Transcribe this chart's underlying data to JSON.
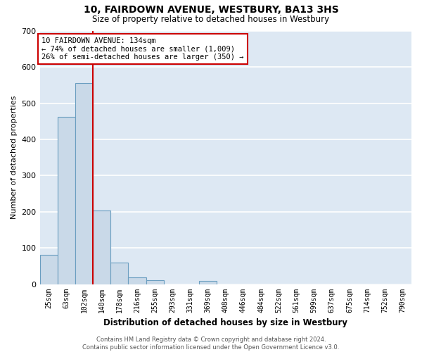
{
  "title": "10, FAIRDOWN AVENUE, WESTBURY, BA13 3HS",
  "subtitle": "Size of property relative to detached houses in Westbury",
  "xlabel": "Distribution of detached houses by size in Westbury",
  "ylabel": "Number of detached properties",
  "bin_labels": [
    "25sqm",
    "63sqm",
    "102sqm",
    "140sqm",
    "178sqm",
    "216sqm",
    "255sqm",
    "293sqm",
    "331sqm",
    "369sqm",
    "408sqm",
    "446sqm",
    "484sqm",
    "522sqm",
    "561sqm",
    "599sqm",
    "637sqm",
    "675sqm",
    "714sqm",
    "752sqm",
    "790sqm"
  ],
  "bar_heights": [
    80,
    462,
    556,
    204,
    60,
    18,
    10,
    0,
    0,
    8,
    0,
    0,
    0,
    0,
    0,
    0,
    0,
    0,
    0,
    0,
    0
  ],
  "bar_color": "#c9d9e8",
  "bar_edge_color": "#6a9ec0",
  "background_color": "#dde8f3",
  "grid_color": "#ffffff",
  "red_line_color": "#cc0000",
  "annotation_text": "10 FAIRDOWN AVENUE: 134sqm\n← 74% of detached houses are smaller (1,009)\n26% of semi-detached houses are larger (350) →",
  "annotation_box_edge": "#cc0000",
  "ylim": [
    0,
    700
  ],
  "yticks": [
    0,
    100,
    200,
    300,
    400,
    500,
    600,
    700
  ],
  "footer_line1": "Contains HM Land Registry data © Crown copyright and database right 2024.",
  "footer_line2": "Contains public sector information licensed under the Open Government Licence v3.0."
}
